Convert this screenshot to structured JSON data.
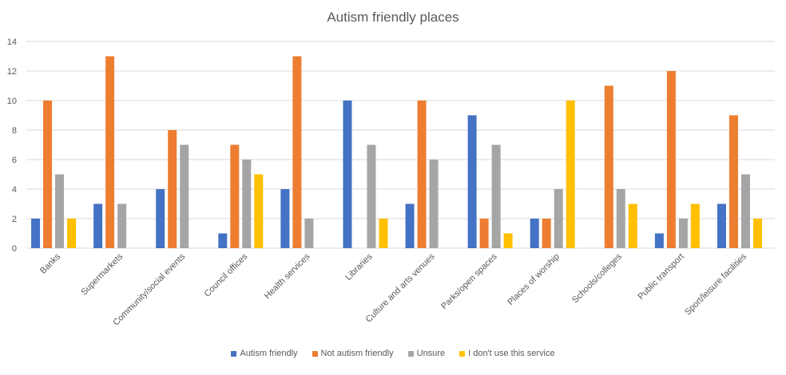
{
  "chart_data": {
    "type": "bar",
    "title": "Autism friendly places",
    "xlabel": "",
    "ylabel": "",
    "ylim": [
      0,
      14
    ],
    "yticks": [
      0,
      2,
      4,
      6,
      8,
      10,
      12,
      14
    ],
    "grid": true,
    "legend_position": "bottom",
    "categories": [
      "Banks",
      "Supermarkets",
      "Community/social events",
      "Council offices",
      "Health services",
      "Libraries",
      "Culture and arts venues",
      "Parks/open spaces",
      "Places of worship",
      "Schools/colleges",
      "Public transport",
      "Sport/leisure facilities"
    ],
    "series": [
      {
        "name": "Autism friendly",
        "color": "#4472C4",
        "values": [
          2,
          3,
          4,
          1,
          4,
          10,
          3,
          9,
          2,
          0,
          1,
          3
        ]
      },
      {
        "name": "Not autism friendly",
        "color": "#ED7D31",
        "values": [
          10,
          13,
          8,
          7,
          13,
          0,
          10,
          2,
          2,
          11,
          12,
          9
        ]
      },
      {
        "name": "Unsure",
        "color": "#A5A5A5",
        "values": [
          5,
          3,
          7,
          6,
          2,
          7,
          6,
          7,
          4,
          4,
          2,
          5
        ]
      },
      {
        "name": "I don't use this service",
        "color": "#FFC000",
        "values": [
          2,
          0,
          0,
          5,
          0,
          2,
          0,
          1,
          10,
          3,
          3,
          2
        ]
      }
    ]
  }
}
